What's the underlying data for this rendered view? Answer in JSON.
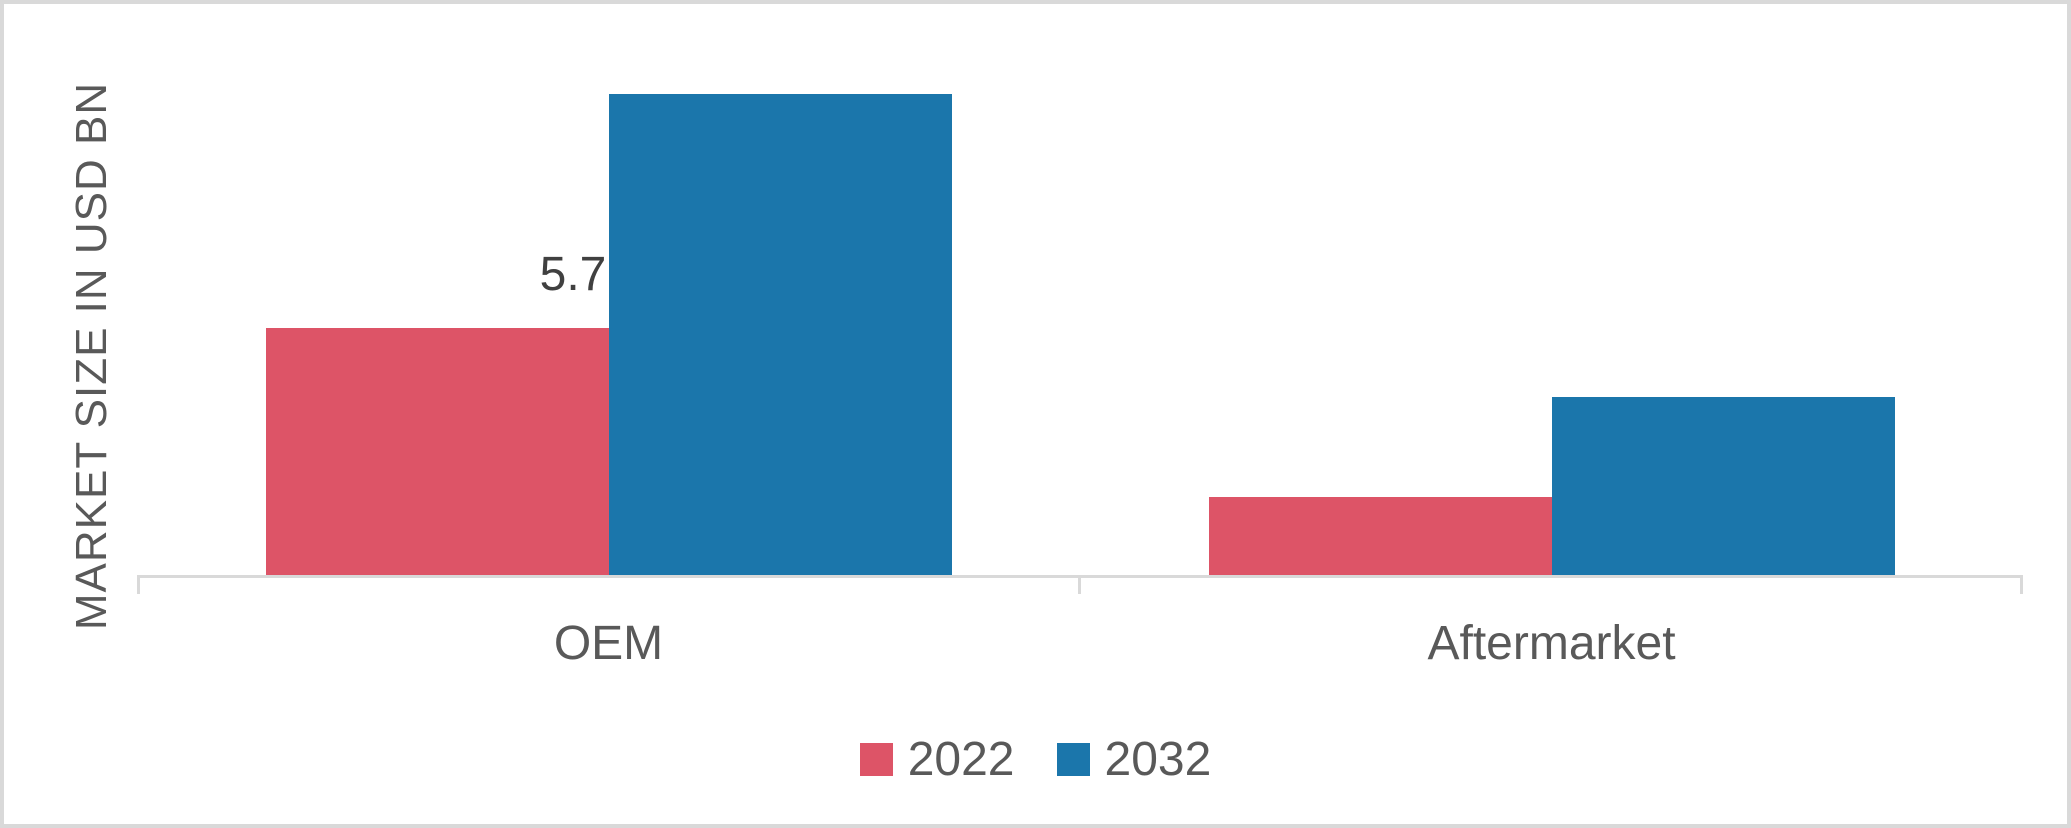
{
  "page": {
    "background": "#FFFFFF",
    "frame_border_color": "#D9D9D9"
  },
  "chart_data": {
    "type": "bar",
    "title": "",
    "y_axis_title": "MARKET SIZE IN USD BN",
    "xlabel": "",
    "ylabel": "MARKET SIZE IN USD BN",
    "categories": [
      "OEM",
      "Aftermarket"
    ],
    "series": [
      {
        "name": "2022",
        "color": "#DD5467",
        "values": [
          5.7,
          1.8
        ]
      },
      {
        "name": "2032",
        "color": "#1B76AB",
        "values": [
          11.1,
          4.1
        ]
      }
    ],
    "data_labels": [
      {
        "series": "2022",
        "category": "OEM",
        "text": "5.7"
      }
    ],
    "ylim": [
      0,
      13.2
    ],
    "grid": false,
    "legend_position": "bottom",
    "axis_color": "#D9D9D9",
    "label_color": "#595959",
    "data_label_color": "#404040"
  }
}
